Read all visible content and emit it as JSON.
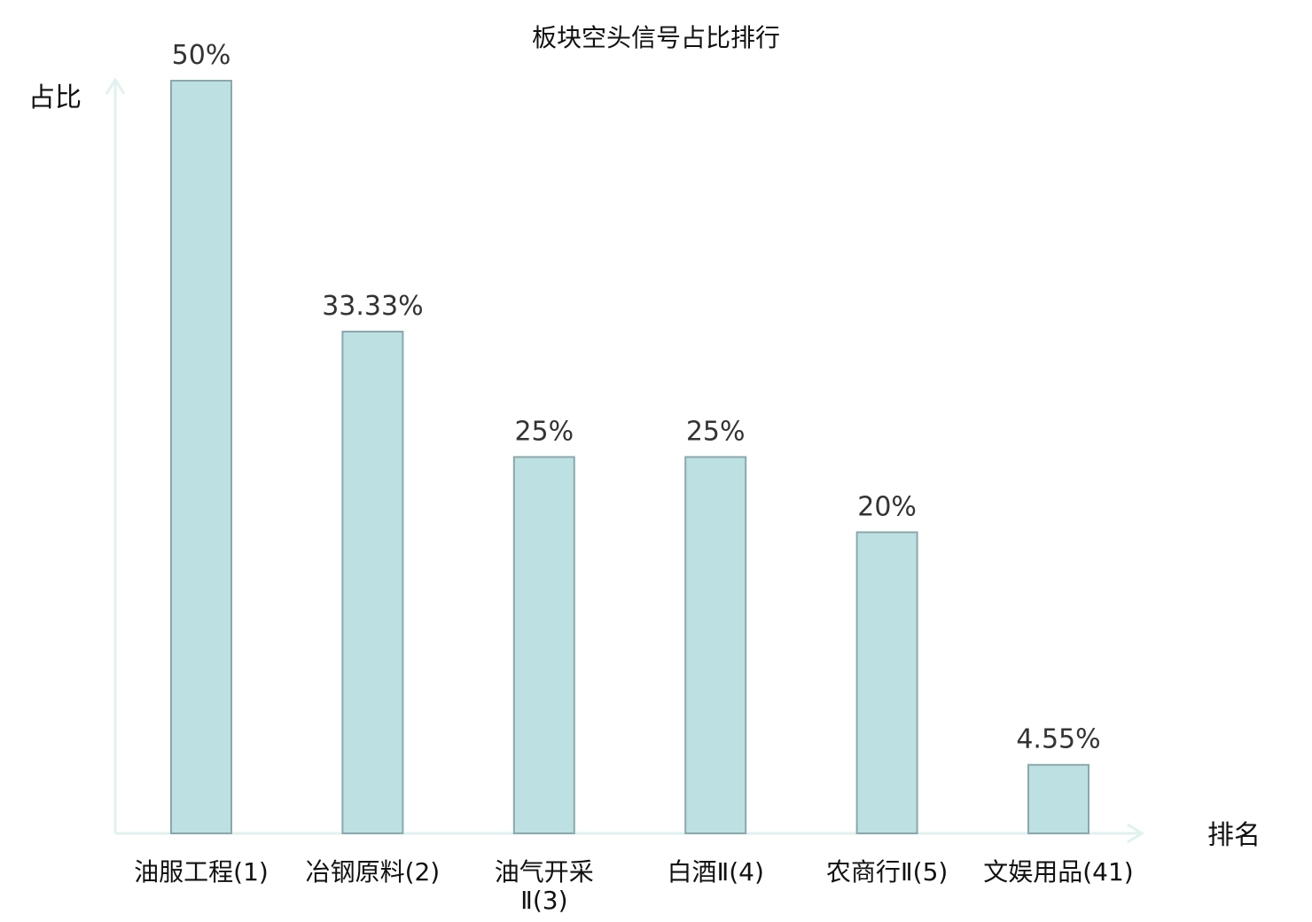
{
  "chart_data": {
    "type": "bar",
    "title": "板块空头信号占比排行",
    "xlabel": "排名",
    "ylabel": "占比",
    "ylim": [
      0,
      50
    ],
    "grid": false,
    "categories": [
      [
        "油服工程(1)"
      ],
      [
        "冶钢原料(2)"
      ],
      [
        "油气开采",
        "Ⅱ(3)"
      ],
      [
        "白酒Ⅱ(4)"
      ],
      [
        "农商行Ⅱ(5)"
      ],
      [
        "文娱用品(41)"
      ]
    ],
    "values": [
      50,
      33.33,
      25,
      25,
      20,
      4.55
    ],
    "value_labels": [
      "50%",
      "33.33%",
      "25%",
      "25%",
      "20%",
      "4.55%"
    ],
    "highlight_index": 5
  },
  "colors": {
    "bar_fill": "#bde0e3",
    "bar_stroke": "#8aa8ab",
    "axis": "#e0f2ef",
    "highlight_text": "#e8191b",
    "text": "#111111",
    "value_text": "#333333"
  }
}
